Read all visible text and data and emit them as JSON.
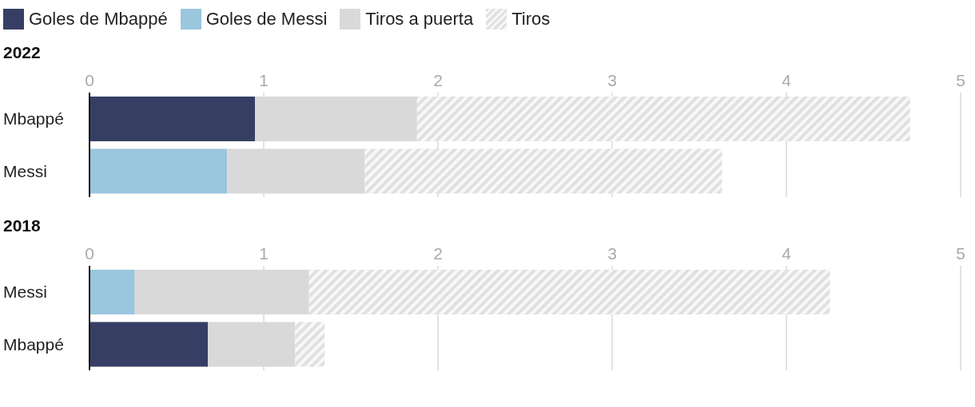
{
  "chart_data": [
    {
      "type": "bar",
      "title": "2022",
      "orientation": "horizontal",
      "stacked": true,
      "categories": [
        "Mbappé",
        "Messi"
      ],
      "xlim": [
        0,
        5
      ],
      "xticks": [
        0,
        1,
        2,
        3,
        4,
        5
      ],
      "grid": "x",
      "legend": "top",
      "series": [
        {
          "name": "Goles de Mbappé",
          "color": "#363f63",
          "values": [
            0.95,
            null
          ]
        },
        {
          "name": "Goles de Messi",
          "color": "#9ac6de",
          "values": [
            null,
            0.79
          ]
        },
        {
          "name": "Tiros a puerta",
          "color": "#d9d9d9",
          "values": [
            0.93,
            0.79
          ]
        },
        {
          "name": "Tiros",
          "color": "#e0e0e0",
          "values": [
            2.83,
            2.05
          ]
        }
      ]
    },
    {
      "type": "bar",
      "title": "2018",
      "orientation": "horizontal",
      "stacked": true,
      "categories": [
        "Messi",
        "Mbappé"
      ],
      "xlim": [
        0,
        5
      ],
      "xticks": [
        0,
        1,
        2,
        3,
        4,
        5
      ],
      "grid": "x",
      "legend": false,
      "series": [
        {
          "color": "#363f63",
          "values": [
            null,
            0.68
          ]
        },
        {
          "color": "#9ac6de",
          "values": [
            0.26,
            null
          ]
        },
        {
          "color": "#d9d9d9",
          "values": [
            1.0,
            0.5
          ]
        },
        {
          "color": "#e0e0e0",
          "values": [
            2.99,
            0.17
          ]
        }
      ]
    }
  ]
}
